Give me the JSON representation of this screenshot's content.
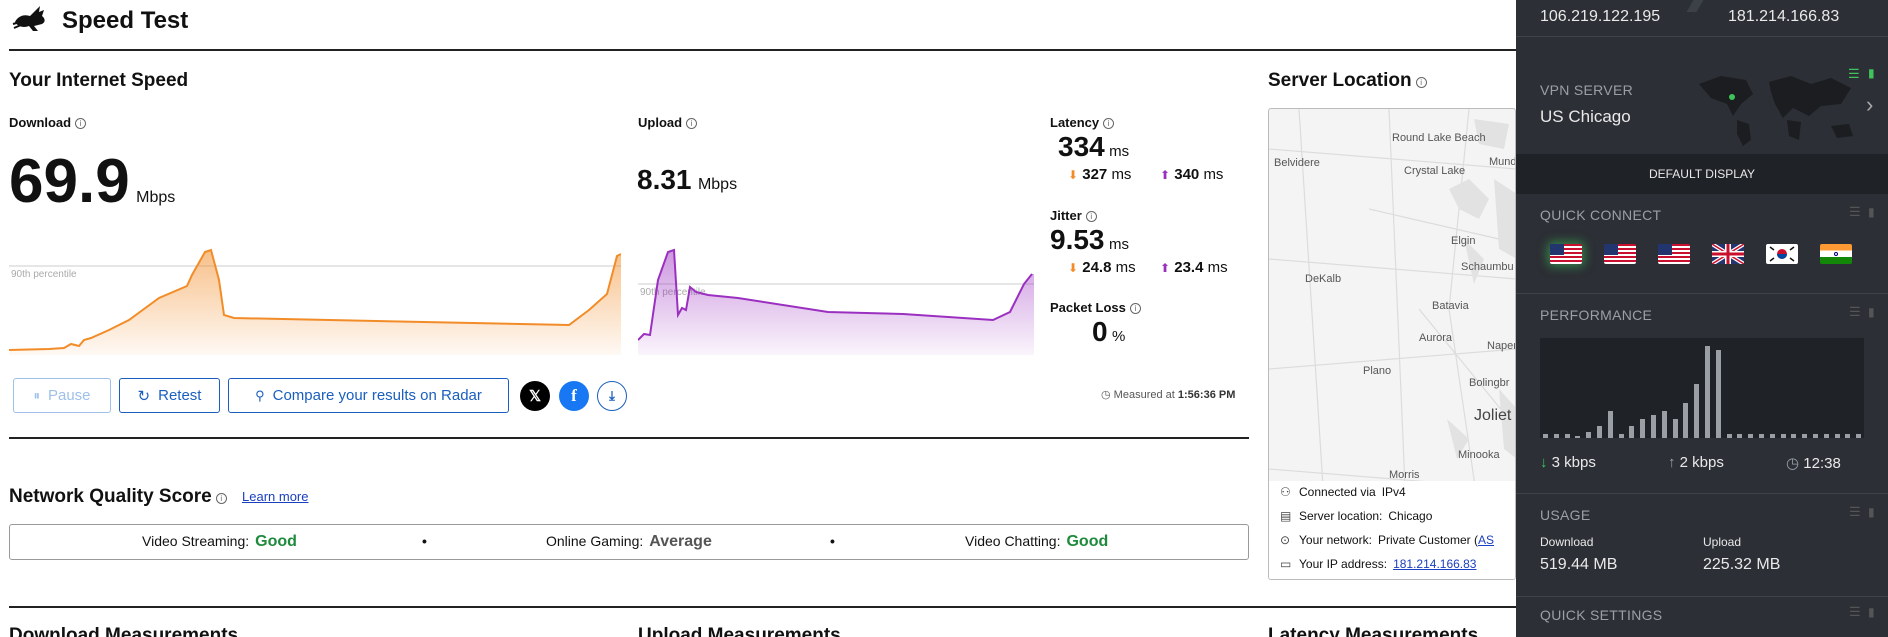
{
  "header": {
    "title": "Speed Test",
    "logo_icon": "rabbit-logo-icon"
  },
  "speed": {
    "section_title": "Your Internet Speed",
    "download": {
      "label": "Download",
      "value": "69.9",
      "unit": "Mbps",
      "percentile_label": "90th percentile"
    },
    "upload": {
      "label": "Upload",
      "value": "8.31",
      "unit": "Mbps",
      "percentile_label": "90th percentile"
    },
    "latency": {
      "label": "Latency",
      "value": "334",
      "unit": "ms",
      "down": "327",
      "down_unit": "ms",
      "up": "340",
      "up_unit": "ms"
    },
    "jitter": {
      "label": "Jitter",
      "value": "9.53",
      "unit": "ms",
      "down": "24.8",
      "down_unit": "ms",
      "up": "23.4",
      "up_unit": "ms"
    },
    "packet_loss": {
      "label": "Packet Loss",
      "value": "0",
      "unit": "%"
    }
  },
  "actions": {
    "pause": "Pause",
    "retest": "Retest",
    "compare": "Compare your results on Radar",
    "measured_prefix": "Measured at",
    "measured_time": "1:56:36 PM"
  },
  "quality": {
    "title": "Network Quality Score",
    "learn_more": "Learn more",
    "items": [
      {
        "label": "Video Streaming:",
        "value": "Good"
      },
      {
        "label": "Online Gaming:",
        "value": "Average"
      },
      {
        "label": "Video Chatting:",
        "value": "Good"
      }
    ]
  },
  "bottom_headers": [
    "Download Measurements",
    "Upload Measurements",
    "Latency Measurements"
  ],
  "server": {
    "title": "Server Location",
    "cities": [
      "Round Lake Beach",
      "Belvidere",
      "Crystal Lake",
      "Mund",
      "Elgin",
      "Schaumbu",
      "DeKalb",
      "Batavia",
      "Aurora",
      "Naper",
      "Plano",
      "Bolingbr",
      "Joliet",
      "Minooka",
      "Morris"
    ],
    "connected_via_label": "Connected via",
    "connected_via": "IPv4",
    "location_label": "Server location:",
    "location": "Chicago",
    "network_label": "Your network:",
    "network": "Private Customer (",
    "network_link": "AS",
    "ip_label": "Your IP address:",
    "ip": "181.214.166.83"
  },
  "vpn": {
    "ip_left": "106.219.122.195",
    "ip_right": "181.214.166.83",
    "server_label": "VPN SERVER",
    "server_name": "US Chicago",
    "default_display": "DEFAULT DISPLAY",
    "quick_connect": "QUICK CONNECT",
    "flags": [
      "us",
      "us",
      "us",
      "uk",
      "kr",
      "in"
    ],
    "performance": "PERFORMANCE",
    "perf_bars": [
      2,
      2,
      2,
      1,
      3,
      6,
      14,
      2,
      6,
      10,
      12,
      14,
      10,
      18,
      28,
      48,
      46,
      2,
      2,
      2,
      2,
      2,
      2,
      2,
      2,
      2,
      2,
      2,
      2,
      2
    ],
    "down_rate": "3 kbps",
    "up_rate": "2 kbps",
    "time": "12:38",
    "usage": "USAGE",
    "download_label": "Download",
    "download_value": "519.44 MB",
    "upload_label": "Upload",
    "upload_value": "225.32 MB",
    "quick_settings": "QUICK SETTINGS"
  },
  "colors": {
    "download": "#f28c28",
    "upload": "#9b30c0",
    "link": "#1a5fbf",
    "good": "#1e8a3c"
  }
}
